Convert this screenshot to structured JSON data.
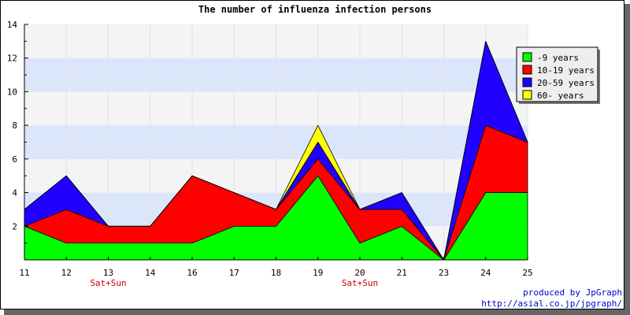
{
  "chart_data": {
    "type": "area",
    "stacked": true,
    "title": "The number of influenza infection persons",
    "categories": [
      "11",
      "12",
      "13",
      "14",
      "16",
      "17",
      "18",
      "19",
      "20",
      "21",
      "23",
      "24",
      "25"
    ],
    "category_sublabels": [
      "",
      "",
      "Sat+Sun",
      "",
      "",
      "",
      "",
      "",
      "Sat+Sun",
      "",
      "",
      "",
      ""
    ],
    "series": [
      {
        "name": "-9 years",
        "color": "#00ff00",
        "values": [
          2,
          1,
          1,
          1,
          1,
          2,
          2,
          5,
          1,
          2,
          0,
          4,
          4
        ]
      },
      {
        "name": "10-19 years",
        "color": "#ff0000",
        "values": [
          0,
          2,
          1,
          1,
          4,
          2,
          1,
          1,
          2,
          1,
          0,
          4,
          3
        ]
      },
      {
        "name": "20-59 years",
        "color": "#2200ff",
        "values": [
          1,
          2,
          0,
          0,
          0,
          0,
          0,
          1,
          0,
          1,
          0,
          5,
          0
        ]
      },
      {
        "name": "60- years",
        "color": "#ffff00",
        "values": [
          0,
          0,
          0,
          0,
          0,
          0,
          0,
          1,
          0,
          0,
          0,
          0,
          0
        ]
      }
    ],
    "ylim": [
      0,
      14
    ],
    "yticks": [
      "2",
      "4",
      "6",
      "8",
      "10",
      "12",
      "14"
    ],
    "xlabel": "",
    "ylabel": "",
    "grid": true,
    "band_colors": [
      "#f4f4f4",
      "#dce6fa"
    ],
    "legend_position": "top-right",
    "sublabel_color": "#cc0000"
  },
  "credit": {
    "line1": "produced by JpGraph",
    "line2": "http://asial.co.jp/jpgraph/",
    "color": "#0000cc"
  }
}
